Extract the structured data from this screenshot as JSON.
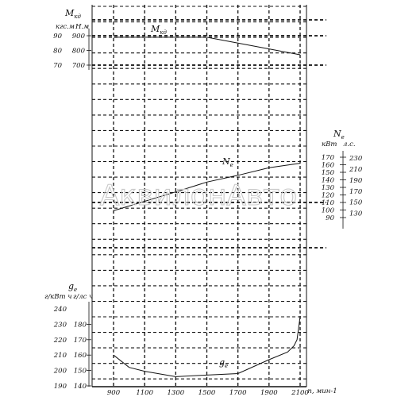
{
  "watermark": "АквилонАвто",
  "chart_data": [
    {
      "type": "line",
      "name_label": "M",
      "name_sub": "кд",
      "y_axis_title": "M",
      "y_axis_title_sub": "кд",
      "y_units_left": "кгс.м",
      "y_units_right": "Н.м",
      "y_ticks_outer": [
        70,
        80,
        90
      ],
      "y_ticks_inner": [
        700,
        800,
        900
      ],
      "ylim": [
        700,
        900
      ],
      "x": [
        900,
        1500,
        2100
      ],
      "values": [
        890,
        890,
        770
      ]
    },
    {
      "type": "line",
      "name_label": "N",
      "name_sub": "е",
      "y_axis_title": "N",
      "y_axis_title_sub": "e",
      "y_units_kw": "кВт",
      "y_units_hp": "л.с.",
      "y_ticks_kw": [
        90,
        100,
        110,
        120,
        130,
        140,
        150,
        160,
        170
      ],
      "y_ticks_hp": [
        130,
        150,
        170,
        190,
        210,
        230
      ],
      "ylim": [
        90,
        170
      ],
      "x": [
        900,
        1300,
        1500,
        1700,
        1900,
        2100
      ],
      "values": [
        99,
        124,
        137,
        146,
        156,
        162
      ]
    },
    {
      "type": "line",
      "name_label": "g",
      "name_sub": "e",
      "y_axis_title": "g",
      "y_axis_title_sub": "e",
      "y_units_left": "г/кВт ч",
      "y_units_right": "г/лс ч",
      "y_ticks_outer": [
        190,
        200,
        210,
        220,
        230,
        240
      ],
      "y_ticks_inner": [
        140,
        150,
        160,
        170,
        180
      ],
      "ylim": [
        190,
        240
      ],
      "x": [
        900,
        1000,
        1100,
        1300,
        1500,
        1700,
        1900,
        2020,
        2060,
        2080,
        2100
      ],
      "values": [
        210,
        202,
        199.5,
        196,
        197,
        198,
        207,
        212,
        216,
        220,
        235
      ]
    }
  ],
  "x_axis": {
    "ticks": [
      900,
      1100,
      1300,
      1500,
      1700,
      1900,
      2100
    ],
    "label": "n, мин-1",
    "xlim": [
      900,
      2100
    ]
  }
}
